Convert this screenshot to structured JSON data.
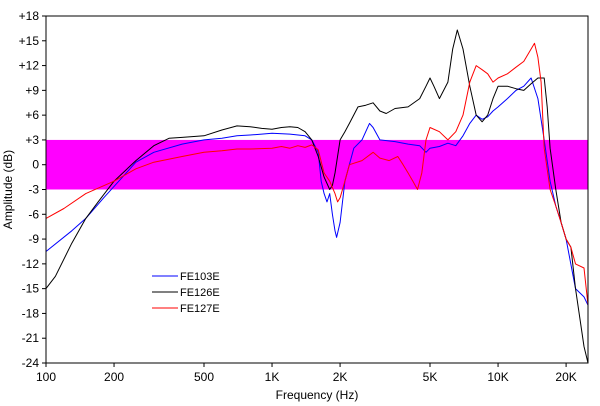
{
  "chart_data": {
    "type": "line",
    "xlabel": "Frequency (Hz)",
    "ylabel": "Amplitude (dB)",
    "x_scale": "log",
    "xlim": [
      100,
      25000
    ],
    "ylim": [
      -24,
      18
    ],
    "x_ticks": [
      {
        "value": 100,
        "label": "100"
      },
      {
        "value": 200,
        "label": "200"
      },
      {
        "value": 500,
        "label": "500"
      },
      {
        "value": 1000,
        "label": "1K"
      },
      {
        "value": 2000,
        "label": "2K"
      },
      {
        "value": 5000,
        "label": "5K"
      },
      {
        "value": 10000,
        "label": "10K"
      },
      {
        "value": 20000,
        "label": "20K"
      }
    ],
    "y_ticks": [
      {
        "value": 18,
        "label": "+18"
      },
      {
        "value": 15,
        "label": "+15"
      },
      {
        "value": 12,
        "label": "+12"
      },
      {
        "value": 9,
        "label": "+9"
      },
      {
        "value": 6,
        "label": "+6"
      },
      {
        "value": 3,
        "label": "+3"
      },
      {
        "value": 0,
        "label": "0"
      },
      {
        "value": -3,
        "label": "-3"
      },
      {
        "value": -6,
        "label": "-6"
      },
      {
        "value": -9,
        "label": "-9"
      },
      {
        "value": -12,
        "label": "-12"
      },
      {
        "value": -15,
        "label": "-15"
      },
      {
        "value": -18,
        "label": "-18"
      },
      {
        "value": -21,
        "label": "-21"
      },
      {
        "value": -24,
        "label": "-24"
      }
    ],
    "band": {
      "from": -3,
      "to": 3,
      "color": "#ff00ff"
    },
    "grid": false,
    "legend_position": "lower-left",
    "series": [
      {
        "name": "FE103E",
        "color": "#0000ff",
        "points": [
          [
            100,
            -10.5
          ],
          [
            130,
            -8
          ],
          [
            150,
            -6.5
          ],
          [
            180,
            -4
          ],
          [
            210,
            -2
          ],
          [
            250,
            0.3
          ],
          [
            300,
            1.5
          ],
          [
            400,
            2.5
          ],
          [
            500,
            3
          ],
          [
            600,
            3.2
          ],
          [
            700,
            3.5
          ],
          [
            800,
            3.6
          ],
          [
            900,
            3.7
          ],
          [
            1000,
            3.8
          ],
          [
            1200,
            3.7
          ],
          [
            1400,
            3.5
          ],
          [
            1500,
            3
          ],
          [
            1600,
            1.5
          ],
          [
            1650,
            -2
          ],
          [
            1700,
            -3.5
          ],
          [
            1750,
            -4.5
          ],
          [
            1800,
            -3.5
          ],
          [
            1850,
            -6
          ],
          [
            1900,
            -8
          ],
          [
            1930,
            -8.8
          ],
          [
            2000,
            -7
          ],
          [
            2100,
            -2
          ],
          [
            2300,
            2
          ],
          [
            2500,
            3
          ],
          [
            2700,
            5
          ],
          [
            2800,
            4.5
          ],
          [
            3000,
            3
          ],
          [
            3500,
            2.8
          ],
          [
            4000,
            2.5
          ],
          [
            4500,
            2.3
          ],
          [
            4800,
            1.5
          ],
          [
            5000,
            2
          ],
          [
            5500,
            2.2
          ],
          [
            6000,
            2.6
          ],
          [
            6500,
            2.3
          ],
          [
            7000,
            3.5
          ],
          [
            7500,
            5
          ],
          [
            8000,
            6
          ],
          [
            8500,
            5.5
          ],
          [
            9000,
            5.8
          ],
          [
            9500,
            6.5
          ],
          [
            10000,
            7
          ],
          [
            11000,
            8
          ],
          [
            12000,
            9
          ],
          [
            13000,
            9.5
          ],
          [
            14000,
            10.5
          ],
          [
            15000,
            8
          ],
          [
            16000,
            3
          ],
          [
            17000,
            -2
          ],
          [
            18000,
            -5
          ],
          [
            19000,
            -7
          ],
          [
            20000,
            -9
          ],
          [
            22000,
            -15
          ],
          [
            24000,
            -16
          ],
          [
            25000,
            -17
          ]
        ]
      },
      {
        "name": "FE126E",
        "color": "#000000",
        "points": [
          [
            100,
            -15
          ],
          [
            110,
            -13.5
          ],
          [
            130,
            -9.5
          ],
          [
            150,
            -6.5
          ],
          [
            170,
            -4.5
          ],
          [
            200,
            -2
          ],
          [
            250,
            0.5
          ],
          [
            300,
            2.3
          ],
          [
            350,
            3.2
          ],
          [
            400,
            3.3
          ],
          [
            500,
            3.5
          ],
          [
            600,
            4.2
          ],
          [
            700,
            4.7
          ],
          [
            800,
            4.6
          ],
          [
            900,
            4.4
          ],
          [
            1000,
            4.3
          ],
          [
            1100,
            4.5
          ],
          [
            1200,
            4.6
          ],
          [
            1300,
            4.5
          ],
          [
            1400,
            4
          ],
          [
            1500,
            3
          ],
          [
            1600,
            1
          ],
          [
            1700,
            -1.5
          ],
          [
            1800,
            -3
          ],
          [
            1850,
            -2.5
          ],
          [
            1900,
            -1
          ],
          [
            2000,
            3
          ],
          [
            2100,
            4
          ],
          [
            2200,
            5
          ],
          [
            2400,
            7
          ],
          [
            2600,
            7.2
          ],
          [
            2800,
            7.5
          ],
          [
            3000,
            6.5
          ],
          [
            3200,
            6.2
          ],
          [
            3500,
            6.8
          ],
          [
            4000,
            7
          ],
          [
            4500,
            8
          ],
          [
            4800,
            9.5
          ],
          [
            5000,
            10.5
          ],
          [
            5200,
            9.5
          ],
          [
            5500,
            8
          ],
          [
            6000,
            10
          ],
          [
            6300,
            14
          ],
          [
            6600,
            16.3
          ],
          [
            7000,
            14
          ],
          [
            7500,
            9.5
          ],
          [
            8000,
            6
          ],
          [
            8500,
            5.2
          ],
          [
            9000,
            6
          ],
          [
            9500,
            8
          ],
          [
            10000,
            9.5
          ],
          [
            11000,
            9.5
          ],
          [
            12000,
            9.2
          ],
          [
            13000,
            9
          ],
          [
            14000,
            9.8
          ],
          [
            15000,
            10.5
          ],
          [
            16000,
            10.5
          ],
          [
            16500,
            7
          ],
          [
            17000,
            2
          ],
          [
            18000,
            -3
          ],
          [
            19000,
            -7
          ],
          [
            20000,
            -9
          ],
          [
            21000,
            -10
          ],
          [
            22000,
            -15
          ],
          [
            24000,
            -22
          ],
          [
            25000,
            -24
          ]
        ]
      },
      {
        "name": "FE127E",
        "color": "#ff0000",
        "points": [
          [
            100,
            -6.5
          ],
          [
            120,
            -5.3
          ],
          [
            150,
            -3.5
          ],
          [
            200,
            -2
          ],
          [
            250,
            -0.5
          ],
          [
            300,
            0.3
          ],
          [
            400,
            1
          ],
          [
            500,
            1.5
          ],
          [
            600,
            1.7
          ],
          [
            700,
            1.9
          ],
          [
            800,
            1.9
          ],
          [
            1000,
            2
          ],
          [
            1100,
            2.2
          ],
          [
            1200,
            2
          ],
          [
            1300,
            2.3
          ],
          [
            1400,
            2.1
          ],
          [
            1500,
            2.4
          ],
          [
            1600,
            1.8
          ],
          [
            1700,
            -1
          ],
          [
            1800,
            -2
          ],
          [
            1900,
            -3.5
          ],
          [
            1950,
            -4.5
          ],
          [
            2000,
            -4
          ],
          [
            2100,
            -2
          ],
          [
            2200,
            0
          ],
          [
            2500,
            0.5
          ],
          [
            2800,
            1.5
          ],
          [
            3000,
            0.8
          ],
          [
            3300,
            0.5
          ],
          [
            3600,
            1
          ],
          [
            3800,
            0
          ],
          [
            4000,
            -1
          ],
          [
            4200,
            -2
          ],
          [
            4400,
            -3
          ],
          [
            4600,
            -1
          ],
          [
            4800,
            3
          ],
          [
            5000,
            4.5
          ],
          [
            5500,
            4
          ],
          [
            6000,
            3
          ],
          [
            6500,
            4
          ],
          [
            7000,
            6
          ],
          [
            7500,
            10
          ],
          [
            8000,
            12
          ],
          [
            8500,
            11.5
          ],
          [
            9000,
            11
          ],
          [
            9500,
            10
          ],
          [
            10000,
            10.5
          ],
          [
            11000,
            11
          ],
          [
            12000,
            11.8
          ],
          [
            13000,
            12.5
          ],
          [
            14000,
            14
          ],
          [
            14500,
            14.7
          ],
          [
            15000,
            13
          ],
          [
            15500,
            10
          ],
          [
            16000,
            2
          ],
          [
            17000,
            -3
          ],
          [
            18000,
            -5
          ],
          [
            19000,
            -7
          ],
          [
            20000,
            -9
          ],
          [
            21000,
            -10
          ],
          [
            22000,
            -12
          ],
          [
            24000,
            -12.5
          ],
          [
            25000,
            -17
          ]
        ]
      }
    ]
  }
}
